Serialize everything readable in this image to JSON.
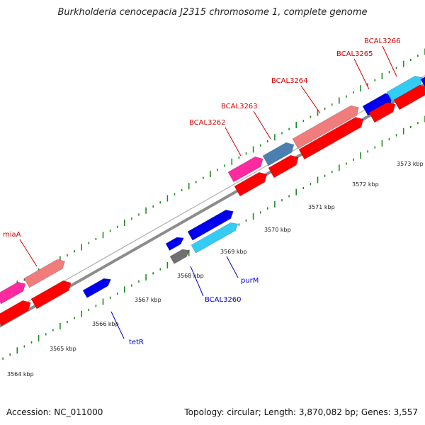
{
  "title": "Burkholderia cenocepacia J2315 chromosome 1, complete genome",
  "footer": {
    "accession": "Accession: NC_011000",
    "stats": "Topology: circular; Length: 3,870,082 bp; Genes: 3,557"
  },
  "colors": {
    "background": "#ffffff",
    "backbone": "#8c8c8c",
    "tick": "#1f8a1f",
    "gene_red": "#ff0000",
    "gene_pink": "#f07c7c",
    "gene_magenta": "#ff2aa0",
    "gene_steel": "#4a7fb0",
    "gene_blue": "#0000ee",
    "gene_cyan": "#33ccf5",
    "gene_gray": "#707070",
    "label_red": "#d40000",
    "label_blue": "#0000c8"
  },
  "scale": {
    "tick_labels": [
      "3564 kbp",
      "3565 kbp",
      "3566 kbp",
      "3567 kbp",
      "3568 kbp",
      "3569 kbp",
      "3570 kbp",
      "3571 kbp",
      "3572 kbp",
      "3573 kbp"
    ]
  },
  "gene_labels": {
    "miaA": "miaA",
    "bcal3262": "BCAL3262",
    "bcal3263": "BCAL3263",
    "bcal3264": "BCAL3264",
    "bcal3265": "BCAL3265",
    "bcal3266": "BCAL3266",
    "tetR": "tetR",
    "bcal3260": "BCAL3260",
    "purM": "purM"
  }
}
